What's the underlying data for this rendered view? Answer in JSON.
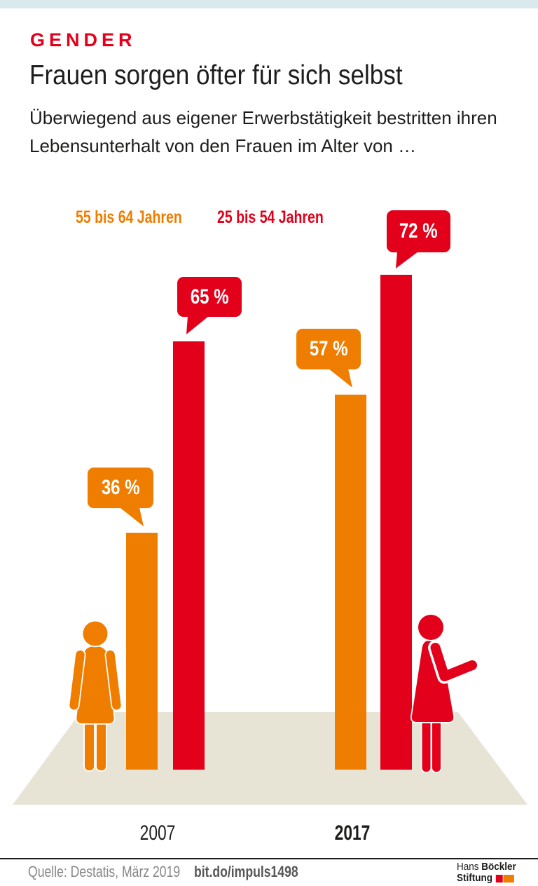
{
  "page": {
    "eyebrow": "GENDER",
    "title": "Frauen sorgen öfter für sich selbst",
    "subtitle": "Überwiegend aus eigener Erwerbstätigkeit bestritten ihren Lebensunterhalt von den Frauen im Alter von …"
  },
  "colors": {
    "accent_red": "#e2001a",
    "accent_orange": "#ef7d00",
    "top_band": "#d9e9ee",
    "ground": "#e7e4d6",
    "text_dark": "#1d1d1b",
    "source_gray": "#878787"
  },
  "chart_data": {
    "type": "bar",
    "categories": [
      "2007",
      "2017"
    ],
    "series": [
      {
        "name": "55 bis 64 Jahren",
        "color": "#ef7d00",
        "values": [
          36,
          57
        ]
      },
      {
        "name": "25 bis 54 Jahren",
        "color": "#e2001a",
        "values": [
          65,
          72
        ]
      }
    ],
    "unit": "%",
    "value_labels": [
      [
        "36 %",
        "57 %"
      ],
      [
        "65 %",
        "72 %"
      ]
    ],
    "legend_position": "top",
    "grid": false,
    "ylim": [
      0,
      100
    ]
  },
  "footer": {
    "source": "Quelle: Destatis, März 2019",
    "link": "bit.do/impuls1498",
    "logo": {
      "line1_light": "Hans",
      "line1_bold": "Böckler",
      "line2_bold": "Stiftung"
    }
  }
}
